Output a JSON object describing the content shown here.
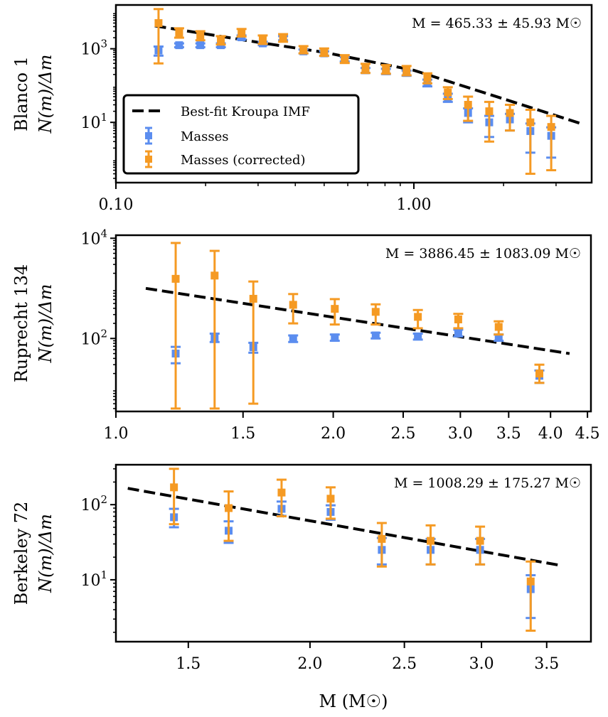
{
  "chart_data": [
    {
      "type": "scatter",
      "panel": "Blanco 1",
      "ylabel_cluster": "Blanco 1",
      "ylabel": "N(m)/Δm",
      "xlabel": "",
      "xscale": "log",
      "yscale": "log",
      "xlim": [
        0.1,
        3.95
      ],
      "ylim": [
        0.23,
        15500
      ],
      "xticks": [
        {
          "value": 0.1,
          "label": "0.10"
        },
        {
          "value": 1.0,
          "label": "1.00"
        }
      ],
      "xminor": [
        0.2,
        0.3,
        0.4,
        0.5,
        0.6,
        0.7,
        0.8,
        0.9,
        2,
        3
      ],
      "yticks": [
        {
          "value": 1000,
          "label": "10",
          "exp": "3"
        },
        {
          "value": 10,
          "label": "10",
          "exp": "1"
        }
      ],
      "annotation": "M = 465.33 ± 45.93 M☉",
      "legend": {
        "position": "lower-left",
        "entries": [
          "Best-fit Kroupa IMF",
          "Masses",
          "Masses (corrected)"
        ]
      },
      "fit": {
        "name": "Best-fit Kroupa IMF",
        "x": [
          0.135,
          0.3,
          0.5,
          1.0,
          3.6
        ],
        "y": [
          4200,
          1500,
          800,
          260,
          9.5
        ]
      },
      "series": [
        {
          "name": "Masses",
          "x": [
            0.139,
            0.163,
            0.192,
            0.225,
            0.264,
            0.311,
            0.364,
            0.426,
            0.5,
            0.586,
            0.688,
            0.806,
            0.945,
            1.11,
            1.3,
            1.52,
            1.79,
            2.1,
            2.46,
            2.89
          ],
          "y": [
            900,
            1250,
            1250,
            1250,
            2050,
            1400,
            1950,
            850,
            750,
            520,
            260,
            245,
            220,
            120,
            48,
            18,
            10,
            12,
            5.8,
            4.3
          ],
          "yerr_low": [
            250,
            150,
            150,
            150,
            250,
            150,
            250,
            100,
            100,
            70,
            40,
            40,
            35,
            25,
            12,
            8,
            6,
            6,
            4.3,
            3.2
          ],
          "yerr_high": [
            250,
            150,
            150,
            150,
            250,
            150,
            250,
            100,
            100,
            70,
            40,
            40,
            35,
            25,
            12,
            6,
            5,
            5,
            3.5,
            3.0
          ]
        },
        {
          "name": "Masses (corrected)",
          "x": [
            0.139,
            0.163,
            0.192,
            0.225,
            0.264,
            0.311,
            0.364,
            0.426,
            0.5,
            0.586,
            0.688,
            0.806,
            0.945,
            1.11,
            1.3,
            1.52,
            1.79,
            2.1,
            2.46,
            2.89
          ],
          "y": [
            5000,
            2700,
            2300,
            1700,
            2750,
            1800,
            2000,
            950,
            820,
            530,
            300,
            280,
            260,
            160,
            65,
            30,
            20,
            18,
            10,
            7.5
          ],
          "yerr_low": [
            4600,
            700,
            600,
            400,
            600,
            450,
            450,
            200,
            180,
            120,
            80,
            70,
            70,
            45,
            22,
            19,
            17,
            12,
            9.6,
            7.0
          ],
          "yerr_high": [
            7000,
            900,
            700,
            500,
            700,
            500,
            500,
            230,
            200,
            140,
            90,
            80,
            80,
            55,
            25,
            20,
            16,
            12,
            12,
            7.5
          ]
        }
      ]
    },
    {
      "type": "scatter",
      "panel": "Ruprecht 134",
      "ylabel_cluster": "Ruprecht 134",
      "ylabel": "N(m)/Δm",
      "xlabel": "",
      "xscale": "log",
      "yscale": "log",
      "xlim": [
        1.0,
        4.55
      ],
      "ylim": [
        3.5,
        11500
      ],
      "xticks": [
        {
          "value": 1.0,
          "label": "1.0"
        },
        {
          "value": 1.5,
          "label": "1.5"
        },
        {
          "value": 2.0,
          "label": "2.0"
        },
        {
          "value": 2.5,
          "label": "2.5"
        },
        {
          "value": 3.0,
          "label": "3.0"
        },
        {
          "value": 3.5,
          "label": "3.5"
        },
        {
          "value": 4.0,
          "label": "4.0"
        },
        {
          "value": 4.5,
          "label": "4.5"
        }
      ],
      "yticks": [
        {
          "value": 10000,
          "label": "10",
          "exp": "4"
        },
        {
          "value": 100,
          "label": "10",
          "exp": "2"
        }
      ],
      "annotation": "M = 3886.45 ± 1083.09 M₀",
      "fit": {
        "name": "Best-fit Kroupa IMF",
        "x": [
          1.1,
          4.25
        ],
        "y": [
          1000,
          50
        ]
      },
      "series": [
        {
          "name": "Masses",
          "x": [
            1.21,
            1.37,
            1.55,
            1.76,
            2.01,
            2.29,
            2.62,
            2.98,
            3.39,
            3.86
          ],
          "y": [
            50,
            105,
            67,
            100,
            105,
            115,
            110,
            130,
            105,
            18
          ],
          "yerr_low": [
            18,
            20,
            15,
            15,
            15,
            15,
            15,
            20,
            15,
            5
          ],
          "yerr_high": [
            18,
            20,
            15,
            15,
            15,
            15,
            15,
            20,
            15,
            5
          ]
        },
        {
          "name": "Masses (corrected)",
          "x": [
            1.21,
            1.37,
            1.55,
            1.76,
            2.01,
            2.29,
            2.62,
            2.98,
            3.39,
            3.86
          ],
          "y": [
            1550,
            1800,
            620,
            470,
            390,
            340,
            270,
            240,
            170,
            20
          ],
          "yerr_low": [
            1546,
            1796,
            615,
            270,
            200,
            150,
            110,
            80,
            50,
            7
          ],
          "yerr_high": [
            6500,
            3800,
            750,
            300,
            220,
            140,
            100,
            70,
            50,
            10
          ]
        }
      ]
    },
    {
      "type": "scatter",
      "panel": "Berkeley 72",
      "ylabel_cluster": "Berkeley 72",
      "ylabel": "N(m)/Δm",
      "xlabel": "M (M☉)",
      "xscale": "log",
      "yscale": "log",
      "xlim": [
        1.264,
        3.886
      ],
      "ylim": [
        1.5,
        340
      ],
      "xticks": [
        {
          "value": 1.5,
          "label": "1.5"
        },
        {
          "value": 2.0,
          "label": "2.0"
        },
        {
          "value": 2.5,
          "label": "2.5"
        },
        {
          "value": 3.0,
          "label": "3.0"
        },
        {
          "value": 3.5,
          "label": "3.5"
        }
      ],
      "yticks": [
        {
          "value": 100,
          "label": "10",
          "exp": "2"
        },
        {
          "value": 10,
          "label": "10",
          "exp": "1"
        }
      ],
      "annotation": "M = 1008.29 ± 175.27 M₀",
      "fit": {
        "name": "Best-fit Kroupa IMF",
        "x": [
          1.3,
          3.62
        ],
        "y": [
          165,
          15.5
        ]
      },
      "series": [
        {
          "name": "Masses",
          "x": [
            1.45,
            1.65,
            1.87,
            2.1,
            2.37,
            2.66,
            2.99,
            3.37
          ],
          "y": [
            68,
            45,
            88,
            80,
            25,
            25,
            25,
            7.5
          ],
          "yerr_low": [
            18,
            14,
            17,
            17,
            9,
            9,
            9,
            4.4
          ],
          "yerr_high": [
            20,
            15,
            22,
            18,
            11,
            10,
            10,
            4.0
          ]
        },
        {
          "name": "Masses (corrected)",
          "x": [
            1.45,
            1.65,
            1.87,
            2.1,
            2.37,
            2.66,
            2.99,
            3.37
          ],
          "y": [
            170,
            90,
            145,
            120,
            35,
            33,
            33,
            9.5
          ],
          "yerr_low": [
            115,
            57,
            75,
            55,
            20,
            17,
            17,
            7.4
          ],
          "yerr_high": [
            130,
            60,
            70,
            50,
            22,
            20,
            18,
            8.0
          ]
        }
      ]
    }
  ],
  "colors": {
    "masses": "#5b8def",
    "masses_corrected": "#f59a23",
    "fit": "#000000"
  },
  "labels": {
    "y_axis_quantity": "N(m)/Δm",
    "sun_symbol": "☉"
  }
}
